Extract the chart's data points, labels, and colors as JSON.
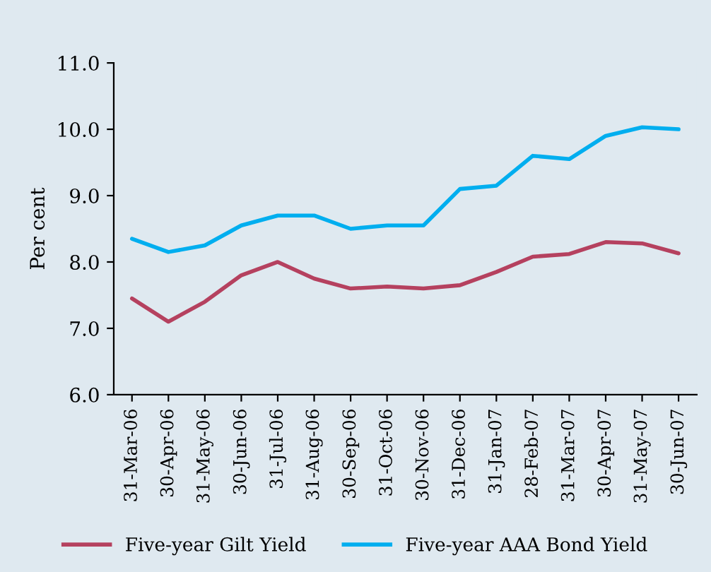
{
  "chart_data": {
    "type": "line",
    "ylabel": "Per cent",
    "categories": [
      "31-Mar-06",
      "30-Apr-06",
      "31-May-06",
      "30-Jun-06",
      "31-Jul-06",
      "31-Aug-06",
      "30-Sep-06",
      "31-Oct-06",
      "30-Nov-06",
      "31-Dec-06",
      "31-Jan-07",
      "28-Feb-07",
      "31-Mar-07",
      "30-Apr-07",
      "31-May-07",
      "30-Jun-07"
    ],
    "series": [
      {
        "name": "Five-year Gilt Yield",
        "color": "#b5415f",
        "values": [
          7.45,
          7.1,
          7.4,
          7.8,
          8.0,
          7.75,
          7.6,
          7.63,
          7.6,
          7.65,
          7.85,
          8.08,
          8.12,
          8.3,
          8.28,
          8.13
        ]
      },
      {
        "name": "Five-year AAA Bond Yield",
        "color": "#00aeef",
        "values": [
          8.35,
          8.15,
          8.25,
          8.55,
          8.7,
          8.7,
          8.5,
          8.55,
          8.55,
          9.1,
          9.15,
          9.6,
          9.55,
          9.9,
          10.03,
          10.0
        ]
      }
    ],
    "ylim": [
      6.0,
      11.0
    ],
    "yticks": [
      {
        "value": 6,
        "label": "6.0"
      },
      {
        "value": 7,
        "label": "7.0"
      },
      {
        "value": 8,
        "label": "8.0"
      },
      {
        "value": 9,
        "label": "9.0"
      },
      {
        "value": 10,
        "label": "10.0"
      },
      {
        "value": 11,
        "label": "11.0"
      }
    ],
    "grid": false,
    "legend": "bottom",
    "marker": "none",
    "line_style": "solid"
  }
}
